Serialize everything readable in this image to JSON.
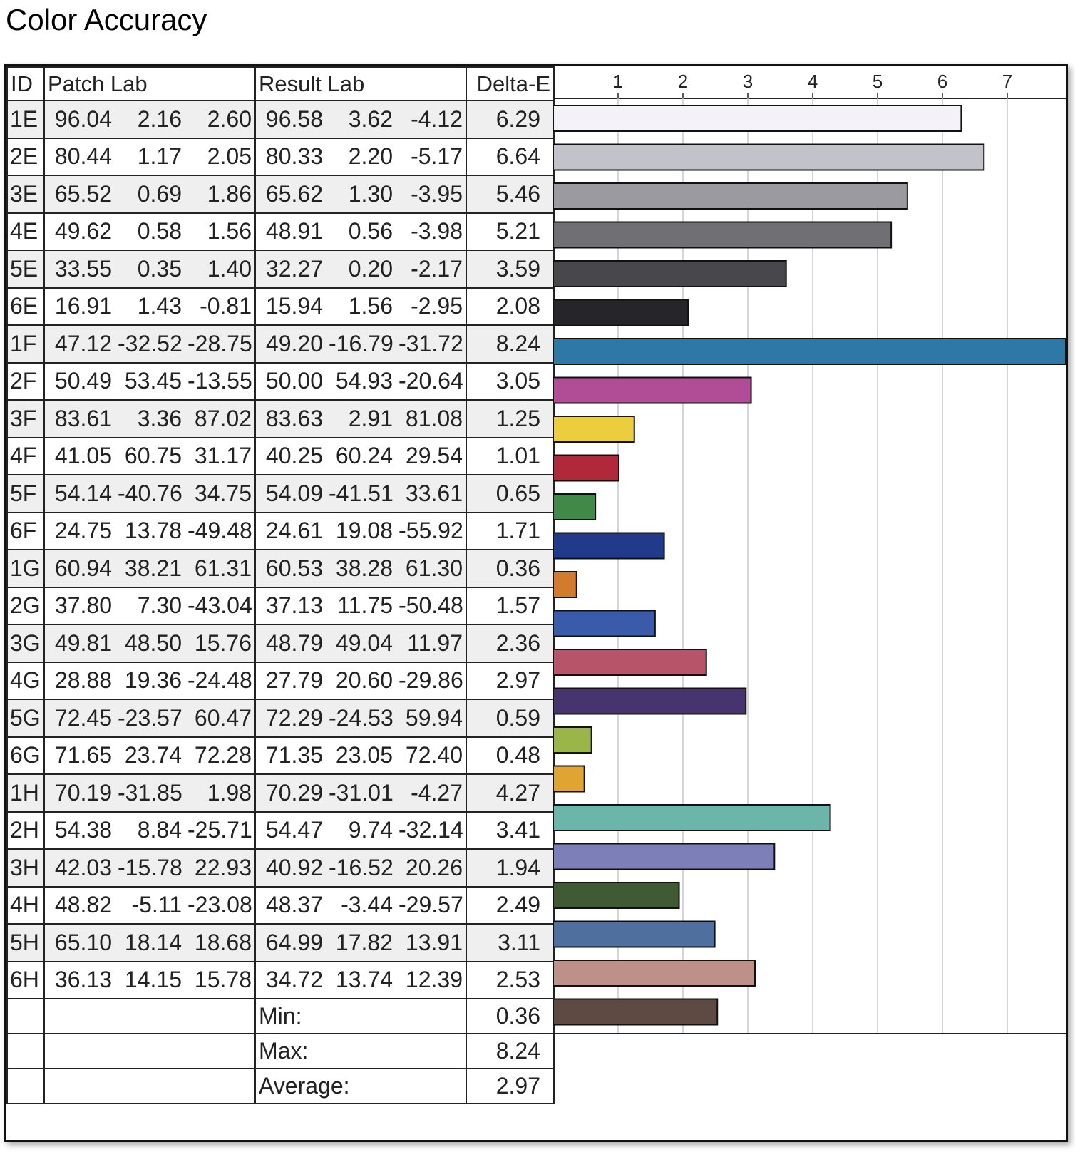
{
  "title": "Color Accuracy",
  "table": {
    "headers": {
      "id": "ID",
      "patch": "Patch Lab",
      "result": "Result Lab",
      "delta": "Delta-E"
    },
    "rows": [
      {
        "id": "1E",
        "patch": [
          "96.04",
          "2.16",
          "2.60"
        ],
        "result": [
          "96.58",
          "3.62",
          "-4.12"
        ],
        "delta": "6.29"
      },
      {
        "id": "2E",
        "patch": [
          "80.44",
          "1.17",
          "2.05"
        ],
        "result": [
          "80.33",
          "2.20",
          "-5.17"
        ],
        "delta": "6.64"
      },
      {
        "id": "3E",
        "patch": [
          "65.52",
          "0.69",
          "1.86"
        ],
        "result": [
          "65.62",
          "1.30",
          "-3.95"
        ],
        "delta": "5.46"
      },
      {
        "id": "4E",
        "patch": [
          "49.62",
          "0.58",
          "1.56"
        ],
        "result": [
          "48.91",
          "0.56",
          "-3.98"
        ],
        "delta": "5.21"
      },
      {
        "id": "5E",
        "patch": [
          "33.55",
          "0.35",
          "1.40"
        ],
        "result": [
          "32.27",
          "0.20",
          "-2.17"
        ],
        "delta": "3.59"
      },
      {
        "id": "6E",
        "patch": [
          "16.91",
          "1.43",
          "-0.81"
        ],
        "result": [
          "15.94",
          "1.56",
          "-2.95"
        ],
        "delta": "2.08"
      },
      {
        "id": "1F",
        "patch": [
          "47.12",
          "-32.52",
          "-28.75"
        ],
        "result": [
          "49.20",
          "-16.79",
          "-31.72"
        ],
        "delta": "8.24"
      },
      {
        "id": "2F",
        "patch": [
          "50.49",
          "53.45",
          "-13.55"
        ],
        "result": [
          "50.00",
          "54.93",
          "-20.64"
        ],
        "delta": "3.05"
      },
      {
        "id": "3F",
        "patch": [
          "83.61",
          "3.36",
          "87.02"
        ],
        "result": [
          "83.63",
          "2.91",
          "81.08"
        ],
        "delta": "1.25"
      },
      {
        "id": "4F",
        "patch": [
          "41.05",
          "60.75",
          "31.17"
        ],
        "result": [
          "40.25",
          "60.24",
          "29.54"
        ],
        "delta": "1.01"
      },
      {
        "id": "5F",
        "patch": [
          "54.14",
          "-40.76",
          "34.75"
        ],
        "result": [
          "54.09",
          "-41.51",
          "33.61"
        ],
        "delta": "0.65"
      },
      {
        "id": "6F",
        "patch": [
          "24.75",
          "13.78",
          "-49.48"
        ],
        "result": [
          "24.61",
          "19.08",
          "-55.92"
        ],
        "delta": "1.71"
      },
      {
        "id": "1G",
        "patch": [
          "60.94",
          "38.21",
          "61.31"
        ],
        "result": [
          "60.53",
          "38.28",
          "61.30"
        ],
        "delta": "0.36"
      },
      {
        "id": "2G",
        "patch": [
          "37.80",
          "7.30",
          "-43.04"
        ],
        "result": [
          "37.13",
          "11.75",
          "-50.48"
        ],
        "delta": "1.57"
      },
      {
        "id": "3G",
        "patch": [
          "49.81",
          "48.50",
          "15.76"
        ],
        "result": [
          "48.79",
          "49.04",
          "11.97"
        ],
        "delta": "2.36"
      },
      {
        "id": "4G",
        "patch": [
          "28.88",
          "19.36",
          "-24.48"
        ],
        "result": [
          "27.79",
          "20.60",
          "-29.86"
        ],
        "delta": "2.97"
      },
      {
        "id": "5G",
        "patch": [
          "72.45",
          "-23.57",
          "60.47"
        ],
        "result": [
          "72.29",
          "-24.53",
          "59.94"
        ],
        "delta": "0.59"
      },
      {
        "id": "6G",
        "patch": [
          "71.65",
          "23.74",
          "72.28"
        ],
        "result": [
          "71.35",
          "23.05",
          "72.40"
        ],
        "delta": "0.48"
      },
      {
        "id": "1H",
        "patch": [
          "70.19",
          "-31.85",
          "1.98"
        ],
        "result": [
          "70.29",
          "-31.01",
          "-4.27"
        ],
        "delta": "4.27"
      },
      {
        "id": "2H",
        "patch": [
          "54.38",
          "8.84",
          "-25.71"
        ],
        "result": [
          "54.47",
          "9.74",
          "-32.14"
        ],
        "delta": "3.41"
      },
      {
        "id": "3H",
        "patch": [
          "42.03",
          "-15.78",
          "22.93"
        ],
        "result": [
          "40.92",
          "-16.52",
          "20.26"
        ],
        "delta": "1.94"
      },
      {
        "id": "4H",
        "patch": [
          "48.82",
          "-5.11",
          "-23.08"
        ],
        "result": [
          "48.37",
          "-3.44",
          "-29.57"
        ],
        "delta": "2.49"
      },
      {
        "id": "5H",
        "patch": [
          "65.10",
          "18.14",
          "18.68"
        ],
        "result": [
          "64.99",
          "17.82",
          "13.91"
        ],
        "delta": "3.11"
      },
      {
        "id": "6H",
        "patch": [
          "36.13",
          "14.15",
          "15.78"
        ],
        "result": [
          "34.72",
          "13.74",
          "12.39"
        ],
        "delta": "2.53"
      }
    ],
    "stats": [
      {
        "label": "Min:",
        "value": "0.36"
      },
      {
        "label": "Max:",
        "value": "8.24"
      },
      {
        "label": "Average:",
        "value": "2.97"
      }
    ]
  },
  "chart_data": {
    "type": "bar",
    "orientation": "horizontal",
    "categories": [
      "1E",
      "2E",
      "3E",
      "4E",
      "5E",
      "6E",
      "1F",
      "2F",
      "3F",
      "4F",
      "5F",
      "6F",
      "1G",
      "2G",
      "3G",
      "4G",
      "5G",
      "6G",
      "1H",
      "2H",
      "3H",
      "4H",
      "5H",
      "6H"
    ],
    "values": [
      6.29,
      6.64,
      5.46,
      5.21,
      3.59,
      2.08,
      8.24,
      3.05,
      1.25,
      1.01,
      0.65,
      1.71,
      0.36,
      1.57,
      2.36,
      2.97,
      0.59,
      0.48,
      4.27,
      3.41,
      1.94,
      2.49,
      3.11,
      2.53
    ],
    "colors": [
      "#f4f1f8",
      "#c2c2ca",
      "#9a9aa0",
      "#707074",
      "#48484c",
      "#26262a",
      "#2e78a6",
      "#b14d97",
      "#eccd3d",
      "#b0283a",
      "#3f8a48",
      "#223a8c",
      "#d27a2e",
      "#3a5aaa",
      "#b8546a",
      "#47336e",
      "#9ab648",
      "#e0a433",
      "#6cb5aa",
      "#7d7fb8",
      "#3f5a34",
      "#4f6f9f",
      "#bd918a",
      "#5d4a42"
    ],
    "xlim": [
      0,
      8
    ],
    "ticks": [
      "1",
      "2",
      "3",
      "4",
      "5",
      "6",
      "7"
    ],
    "grid": true
  }
}
